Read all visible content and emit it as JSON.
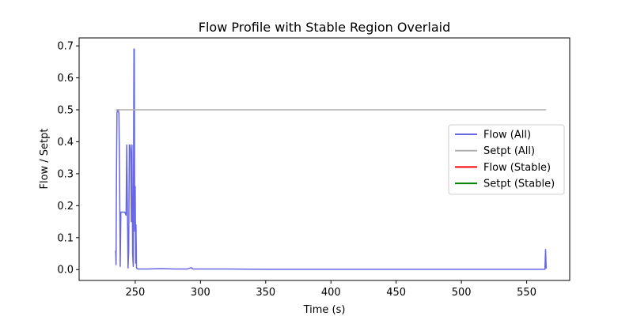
{
  "chart_data": {
    "type": "line",
    "title": "Flow Profile with Stable Region Overlaid",
    "xlabel": "Time (s)",
    "ylabel": "Flow / Setpt",
    "xlim": [
      207,
      583
    ],
    "ylim": [
      -0.034,
      0.725
    ],
    "xticks": [
      250,
      300,
      350,
      400,
      450,
      500,
      550
    ],
    "yticks": [
      0.0,
      0.1,
      0.2,
      0.3,
      0.4,
      0.5,
      0.6,
      0.7
    ],
    "xtick_labels": [
      "250",
      "300",
      "350",
      "400",
      "450",
      "500",
      "550"
    ],
    "ytick_labels": [
      "0.0",
      "0.1",
      "0.2",
      "0.3",
      "0.4",
      "0.5",
      "0.6",
      "0.7"
    ],
    "grid": false,
    "legend_position": "center-right",
    "series": [
      {
        "name": "Flow (All)",
        "color": "#6666e6",
        "x": [
          235,
          235.3,
          235.6,
          236,
          236.5,
          237,
          237.5,
          238,
          238.5,
          239,
          239.5,
          240,
          240.5,
          241,
          242,
          243,
          243.5,
          244,
          244.5,
          245,
          245.5,
          246,
          246.5,
          247,
          247.5,
          248,
          248.5,
          249,
          249.3,
          249.6,
          250,
          250.3,
          250.6,
          251,
          251.5,
          252,
          253,
          255,
          260,
          270,
          280,
          290,
          293,
          294,
          300,
          320,
          350,
          400,
          450,
          500,
          550,
          564,
          564.5,
          565
        ],
        "y": [
          0.06,
          0.015,
          0.28,
          0.49,
          0.5,
          0.5,
          0.49,
          0.3,
          0.01,
          0.18,
          0.18,
          0.18,
          0.18,
          0.18,
          0.18,
          0.17,
          0.39,
          0.2,
          0.005,
          0.06,
          0.39,
          0.39,
          0.37,
          0.15,
          0.39,
          0.05,
          0.01,
          0.69,
          0.69,
          0.12,
          0.26,
          0.02,
          0.14,
          0.005,
          0.003,
          0.002,
          0.002,
          0.002,
          0.002,
          0.003,
          0.002,
          0.002,
          0.006,
          0.002,
          0.002,
          0.002,
          0.001,
          0.001,
          0.001,
          0.001,
          0.001,
          0.001,
          0.063,
          0.003
        ]
      },
      {
        "name": "Setpt (All)",
        "color": "#b0b0b0",
        "x": [
          235,
          565
        ],
        "y": [
          0.5,
          0.5
        ]
      },
      {
        "name": "Flow (Stable)",
        "color": "#ff0000",
        "x": [],
        "y": []
      },
      {
        "name": "Setpt (Stable)",
        "color": "#008000",
        "x": [],
        "y": []
      }
    ]
  }
}
